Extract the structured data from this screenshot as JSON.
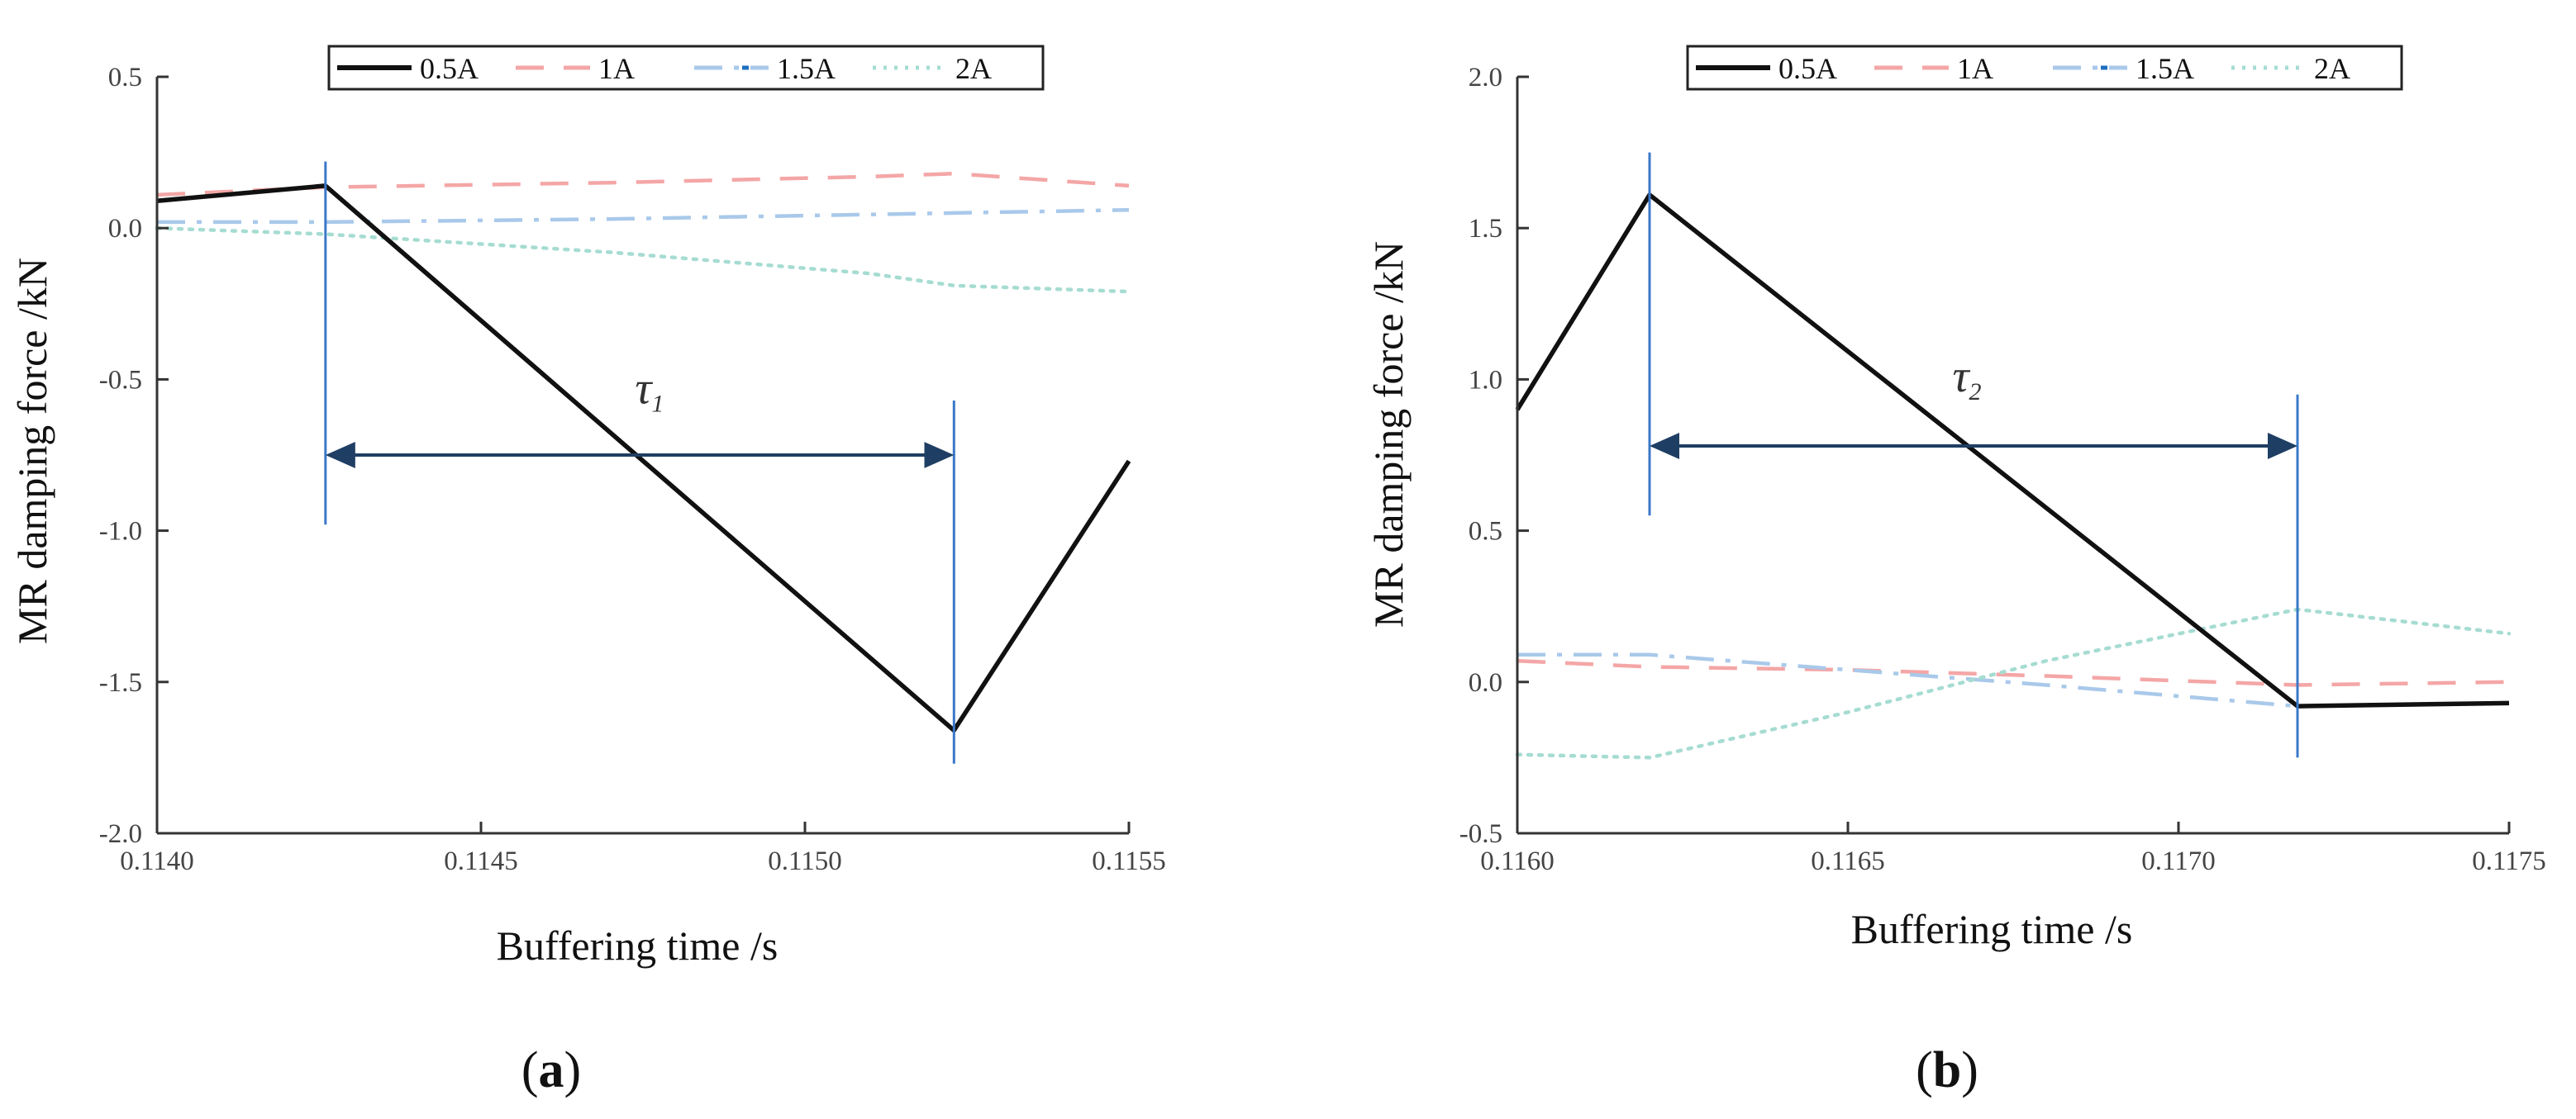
{
  "colors": {
    "0.5A": "#111111",
    "1A": "#f4a6a6",
    "1.5A": "#a9c9ea",
    "1.5A_dot": "#1f6fc0",
    "2A": "#a6dcd2",
    "marker": "#3b78c9",
    "arrow": "#1f3e63",
    "axis": "#333333"
  },
  "chart_data": [
    {
      "type": "line",
      "panel_label": "a",
      "xlabel": "Buffering time /s",
      "ylabel": "MR damping force /kN",
      "xlim": [
        0.114,
        0.1155
      ],
      "ylim": [
        -2.0,
        0.5
      ],
      "xticks": [
        0.114,
        0.1145,
        0.115,
        0.1155
      ],
      "xtick_labels": [
        "0.1140",
        "0.1145",
        "0.1150",
        "0.1155"
      ],
      "yticks": [
        -2.0,
        -1.5,
        -1.0,
        -0.5,
        0.0,
        0.5
      ],
      "ytick_labels": [
        "-2.0",
        "-1.5",
        "-1.0",
        "-0.5",
        "0.0",
        "0.5"
      ],
      "legend": [
        "0.5A",
        "1A",
        "1.5A",
        "2A"
      ],
      "series": [
        {
          "name": "0.5A",
          "style": "solid",
          "x": [
            0.114,
            0.11426,
            0.11523,
            0.1155
          ],
          "y": [
            0.09,
            0.14,
            -1.66,
            -0.77
          ]
        },
        {
          "name": "1A",
          "style": "dashed",
          "x": [
            0.114,
            0.11426,
            0.1147,
            0.1151,
            0.11523,
            0.1155
          ],
          "y": [
            0.11,
            0.135,
            0.15,
            0.17,
            0.18,
            0.14
          ]
        },
        {
          "name": "1.5A",
          "style": "dashdot",
          "x": [
            0.114,
            0.11426,
            0.1147,
            0.1151,
            0.11523,
            0.1155
          ],
          "y": [
            0.02,
            0.02,
            0.03,
            0.045,
            0.05,
            0.06
          ]
        },
        {
          "name": "2A",
          "style": "dotted",
          "x": [
            0.114,
            0.11426,
            0.1147,
            0.1151,
            0.11523,
            0.1155
          ],
          "y": [
            0.0,
            -0.02,
            -0.08,
            -0.15,
            -0.19,
            -0.21
          ]
        }
      ],
      "markers": [
        {
          "x": 0.11426,
          "y_top": 0.22,
          "y_bottom": -0.98
        },
        {
          "x": 0.11523,
          "y_top": -0.57,
          "y_bottom": -1.77
        }
      ],
      "interval": {
        "x_start": 0.11426,
        "x_end": 0.11523,
        "y": -0.75,
        "label": "τ",
        "subscript": "1",
        "label_x": 0.11476,
        "label_y": -0.58
      }
    },
    {
      "type": "line",
      "panel_label": "b",
      "xlabel": "Buffering time /s",
      "ylabel": "MR damping force /kN",
      "xlim": [
        0.116,
        0.1175
      ],
      "ylim": [
        -0.5,
        2.0
      ],
      "xticks": [
        0.116,
        0.1165,
        0.117,
        0.1175
      ],
      "xtick_labels": [
        "0.1160",
        "0.1165",
        "0.1170",
        "0.1175"
      ],
      "yticks": [
        -0.5,
        0.0,
        0.5,
        1.0,
        1.5,
        2.0
      ],
      "ytick_labels": [
        "-0.5",
        "0.0",
        "0.5",
        "1.0",
        "1.5",
        "2.0"
      ],
      "legend": [
        "0.5A",
        "1A",
        "1.5A",
        "2A"
      ],
      "series": [
        {
          "name": "0.5A",
          "style": "solid",
          "x": [
            0.116,
            0.1162,
            0.11718,
            0.1175
          ],
          "y": [
            0.9,
            1.61,
            -0.08,
            -0.07
          ]
        },
        {
          "name": "1A",
          "style": "dashed",
          "x": [
            0.116,
            0.1162,
            0.1165,
            0.1168,
            0.11718,
            0.1175
          ],
          "y": [
            0.07,
            0.05,
            0.04,
            0.02,
            -0.01,
            0.0
          ]
        },
        {
          "name": "1.5A",
          "style": "dashdot",
          "x": [
            0.116,
            0.1162,
            0.1165,
            0.1168,
            0.11718,
            0.1175
          ],
          "y": [
            0.09,
            0.09,
            0.04,
            -0.01,
            -0.08,
            -0.07
          ]
        },
        {
          "name": "2A",
          "style": "dotted",
          "x": [
            0.116,
            0.1162,
            0.1165,
            0.1168,
            0.11718,
            0.1175
          ],
          "y": [
            -0.24,
            -0.25,
            -0.1,
            0.07,
            0.24,
            0.16
          ]
        }
      ],
      "markers": [
        {
          "x": 0.1162,
          "y_top": 1.75,
          "y_bottom": 0.55
        },
        {
          "x": 0.11718,
          "y_top": 0.95,
          "y_bottom": -0.25
        }
      ],
      "interval": {
        "x_start": 0.1162,
        "x_end": 0.11718,
        "y": 0.78,
        "label": "τ",
        "subscript": "2",
        "label_x": 0.11668,
        "label_y": 0.96
      }
    }
  ]
}
